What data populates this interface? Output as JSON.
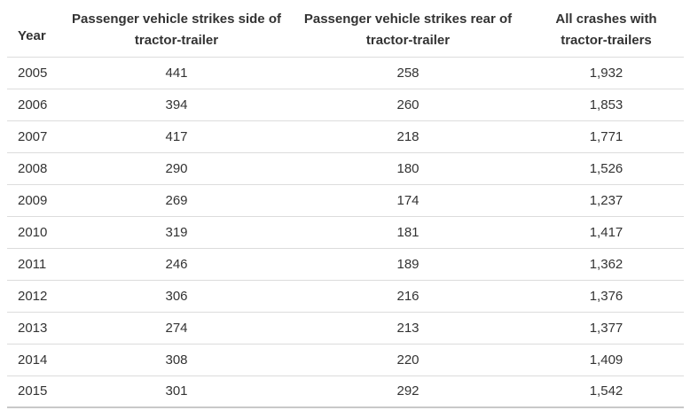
{
  "table": {
    "headers": {
      "year": "Year",
      "side": "Passenger vehicle strikes side of tractor-trailer",
      "rear": "Passenger vehicle strikes rear of tractor-trailer",
      "all": "All crashes with tractor-trailers"
    },
    "rows": [
      {
        "year": "2005",
        "side": "441",
        "rear": "258",
        "all": "1,932"
      },
      {
        "year": "2006",
        "side": "394",
        "rear": "260",
        "all": "1,853"
      },
      {
        "year": "2007",
        "side": "417",
        "rear": "218",
        "all": "1,771"
      },
      {
        "year": "2008",
        "side": "290",
        "rear": "180",
        "all": "1,526"
      },
      {
        "year": "2009",
        "side": "269",
        "rear": "174",
        "all": "1,237"
      },
      {
        "year": "2010",
        "side": "319",
        "rear": "181",
        "all": "1,417"
      },
      {
        "year": "2011",
        "side": "246",
        "rear": "189",
        "all": "1,362"
      },
      {
        "year": "2012",
        "side": "306",
        "rear": "216",
        "all": "1,376"
      },
      {
        "year": "2013",
        "side": "274",
        "rear": "213",
        "all": "1,377"
      },
      {
        "year": "2014",
        "side": "308",
        "rear": "220",
        "all": "1,409"
      },
      {
        "year": "2015",
        "side": "301",
        "rear": "292",
        "all": "1,542"
      }
    ]
  }
}
